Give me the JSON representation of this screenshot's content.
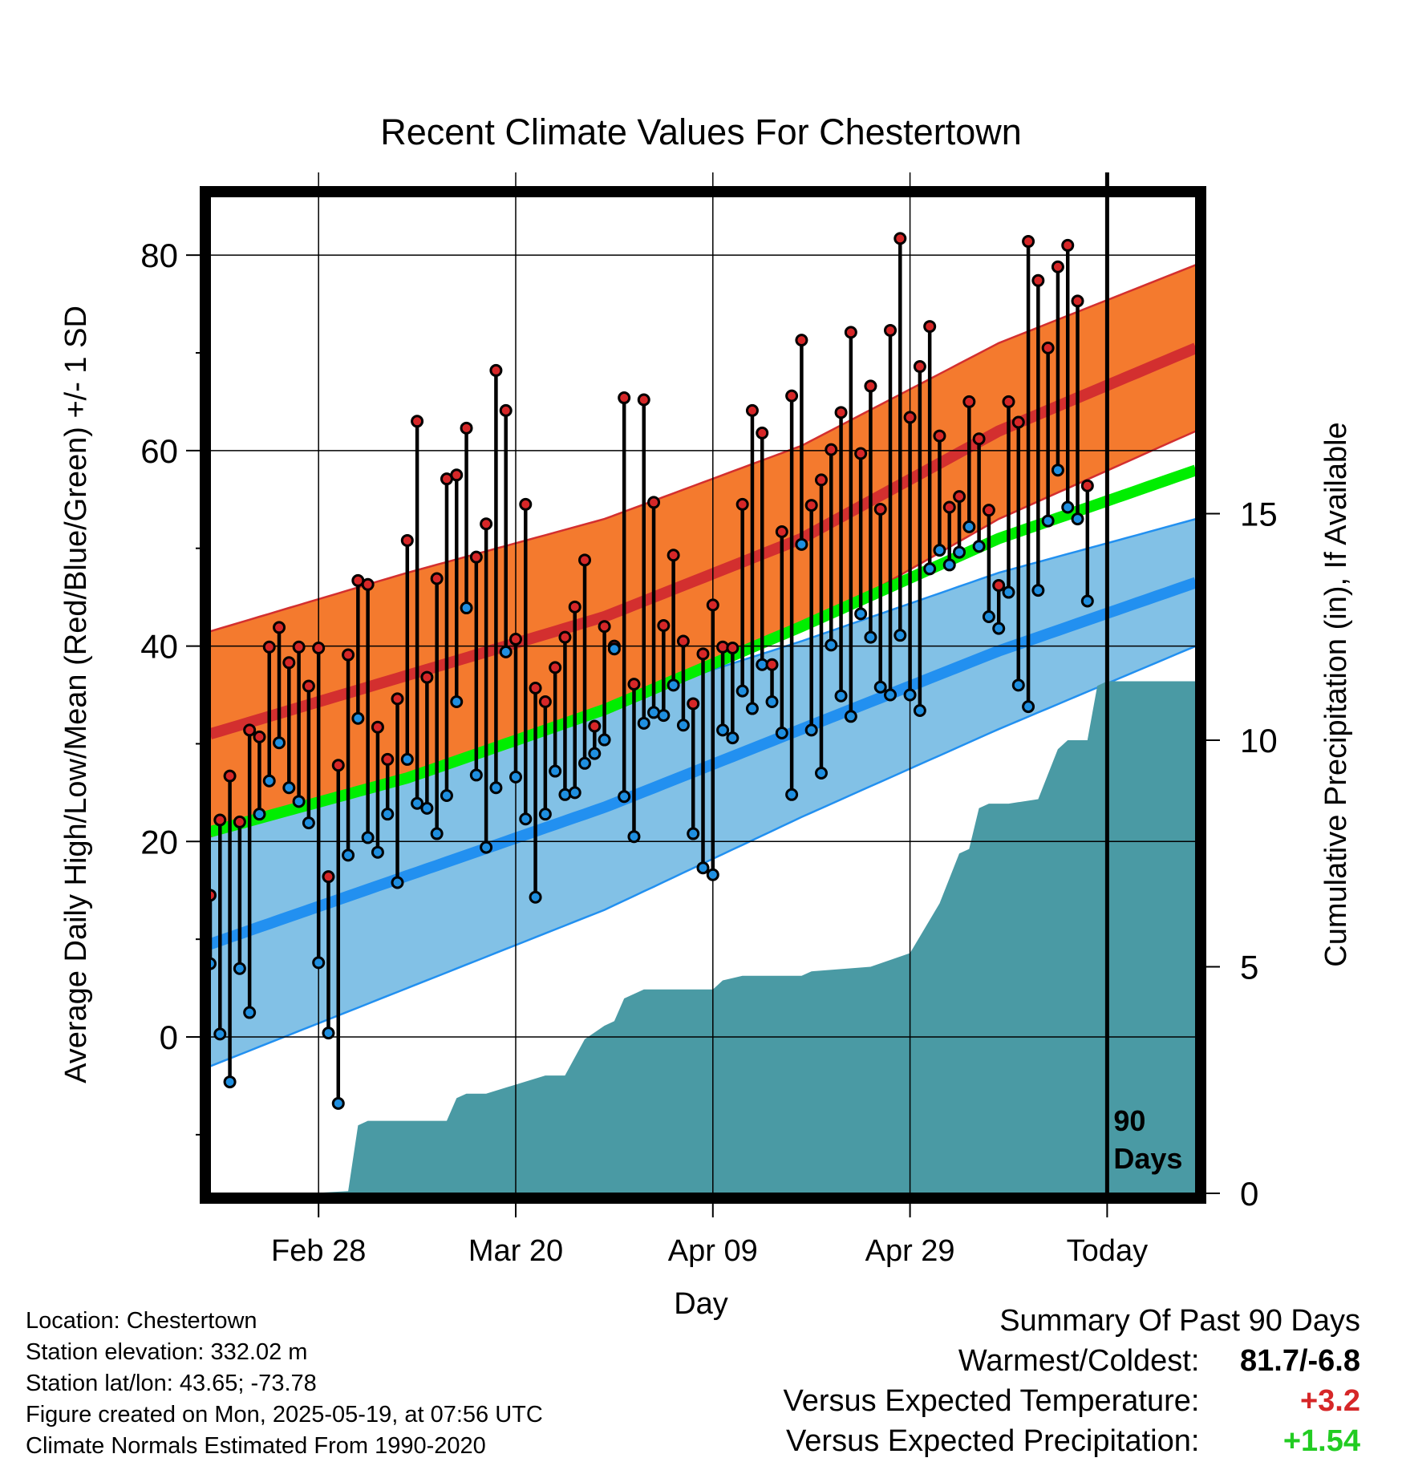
{
  "chart_data": {
    "type": "line",
    "title": "Recent Climate Values For Chestertown",
    "xlabel": "Day",
    "ylabel": "Average Daily High/Low/Mean (Red/Blue/Green) +/- 1 SD",
    "y2label": "Cumulative Precipitation (in), If Available",
    "x_ticks": [
      "Feb 28",
      "Mar 20",
      "Apr 09",
      "Apr 29",
      "Today"
    ],
    "x_tick_day": [
      17,
      37,
      57,
      77,
      97
    ],
    "y_ticks": [
      0,
      20,
      40,
      60,
      80
    ],
    "y2_ticks": [
      0,
      5,
      10,
      15
    ],
    "ylim": [
      -16,
      86
    ],
    "y2lim": [
      0,
      22
    ],
    "xlim": [
      6,
      106
    ],
    "today_day": 97,
    "today_label": [
      "90",
      "Days"
    ],
    "colors": {
      "high_band": "#f47a2e",
      "high_mean": "#d32f2f",
      "low_band": "#82c1e6",
      "low_mean": "#2290f0",
      "avg_mean": "#00ee00",
      "precip": "#4a9aa4",
      "high_point": "#d62728",
      "low_point": "#1f8fe0"
    },
    "normals": {
      "day": [
        6,
        26,
        46,
        66,
        86,
        106
      ],
      "high_mean": [
        31,
        37,
        43,
        51,
        62,
        70.5
      ],
      "high_sd": [
        10.5,
        10.5,
        10,
        9.5,
        9,
        8.5
      ],
      "low_mean": [
        9.5,
        16.5,
        23.5,
        31.5,
        39.5,
        46.5
      ],
      "low_sd": [
        12.5,
        11.5,
        10.5,
        9,
        8,
        6.5
      ],
      "avg_mean": [
        21,
        26.5,
        33.5,
        42,
        51,
        58
      ]
    },
    "daily": {
      "day": [
        6,
        7,
        8,
        9,
        10,
        11,
        12,
        13,
        14,
        15,
        16,
        17,
        18,
        19,
        20,
        21,
        22,
        23,
        24,
        25,
        26,
        27,
        28,
        29,
        30,
        31,
        32,
        33,
        34,
        35,
        36,
        37,
        38,
        39,
        40,
        41,
        42,
        43,
        44,
        45,
        46,
        47,
        48,
        49,
        50,
        51,
        52,
        53,
        54,
        55,
        56,
        57,
        58,
        59,
        60,
        61,
        62,
        63,
        64,
        65,
        66,
        67,
        68,
        69,
        70,
        71,
        72,
        73,
        74,
        75,
        76,
        77,
        78,
        79,
        80,
        81,
        82,
        83,
        84,
        85,
        86,
        87,
        88,
        89,
        90,
        91,
        92,
        93,
        94,
        95
      ],
      "high": [
        14.5,
        22.2,
        26.7,
        22.0,
        31.4,
        30.7,
        39.9,
        41.9,
        38.3,
        39.9,
        35.9,
        39.8,
        16.4,
        27.8,
        39.1,
        46.7,
        46.3,
        31.7,
        28.4,
        34.6,
        50.8,
        63.0,
        36.8,
        46.9,
        57.1,
        57.5,
        62.3,
        49.1,
        52.5,
        68.2,
        64.1,
        40.7,
        54.5,
        35.7,
        34.3,
        37.8,
        40.9,
        44.0,
        48.8,
        31.8,
        42.0,
        40.0,
        65.4,
        36.1,
        65.2,
        54.7,
        42.1,
        49.3,
        40.5,
        34.1,
        39.2,
        44.2,
        39.9,
        39.8,
        54.5,
        64.1,
        61.8,
        38.1,
        51.7,
        65.6,
        71.3,
        54.4,
        57.0,
        60.1,
        63.9,
        72.1,
        59.7,
        66.6,
        54.0,
        72.3,
        81.7,
        63.4,
        68.6,
        72.7,
        61.5,
        54.2,
        55.3,
        65.0,
        61.2,
        53.9,
        46.2,
        65.0,
        62.9,
        81.4,
        77.4,
        70.5,
        78.8,
        81.0,
        75.3,
        56.4
      ],
      "low": [
        7.5,
        0.3,
        -4.6,
        7.0,
        2.5,
        22.8,
        26.2,
        30.1,
        25.5,
        24.1,
        21.9,
        7.6,
        0.4,
        -6.8,
        18.6,
        32.6,
        20.4,
        18.9,
        22.8,
        15.8,
        28.4,
        23.9,
        23.4,
        20.8,
        24.7,
        34.3,
        43.9,
        26.8,
        19.4,
        25.5,
        39.4,
        26.6,
        22.3,
        14.3,
        22.8,
        27.2,
        24.8,
        25.0,
        28.0,
        29.0,
        30.4,
        39.7,
        24.6,
        20.5,
        32.1,
        33.2,
        32.9,
        36.0,
        31.9,
        20.8,
        17.3,
        16.6,
        31.4,
        30.6,
        35.4,
        33.6,
        38.1,
        34.3,
        31.1,
        24.8,
        50.4,
        31.4,
        27.0,
        40.1,
        34.9,
        32.8,
        43.3,
        40.9,
        35.8,
        35.0,
        41.1,
        35.0,
        33.4,
        47.9,
        49.8,
        48.3,
        49.6,
        52.2,
        50.2,
        43.0,
        41.8,
        45.5,
        36.0,
        33.8,
        45.7,
        52.8,
        58.0,
        54.2,
        53.0,
        44.6
      ]
    },
    "precip": {
      "day": [
        6,
        16,
        20,
        21,
        22,
        23,
        24,
        30,
        31,
        32,
        33,
        34,
        40,
        41,
        42,
        44,
        46,
        47,
        48,
        49,
        50,
        51,
        52,
        57,
        58,
        60,
        66,
        67,
        73,
        77,
        80,
        82,
        83,
        84,
        85,
        86,
        87,
        90,
        92,
        93,
        95,
        96,
        97,
        106
      ],
      "value": [
        0,
        0,
        0.05,
        1.5,
        1.6,
        1.6,
        1.6,
        1.6,
        2.1,
        2.2,
        2.2,
        2.2,
        2.6,
        2.6,
        2.6,
        3.4,
        3.7,
        3.8,
        4.3,
        4.4,
        4.5,
        4.5,
        4.5,
        4.5,
        4.7,
        4.8,
        4.8,
        4.9,
        5.0,
        5.3,
        6.4,
        7.5,
        7.6,
        8.5,
        8.6,
        8.6,
        8.6,
        8.7,
        9.8,
        10.0,
        10.0,
        11.2,
        11.3,
        11.3
      ]
    }
  },
  "info": {
    "location": "Location: Chestertown",
    "elevation": "Station elevation: 332.02 m",
    "latlon": "Station lat/lon: 43.65; -73.78",
    "created": "Figure created on Mon, 2025-05-19, at 07:56 UTC",
    "normals": "Climate Normals Estimated From 1990-2020"
  },
  "summary": {
    "title": "Summary Of Past 90 Days",
    "warm_cold_label": "Warmest/Coldest:",
    "warm_cold_value": "81.7/-6.8",
    "temp_label": "Versus Expected Temperature:",
    "temp_value": "+3.2",
    "precip_label": "Versus Expected Precipitation:",
    "precip_value": "+1.54"
  }
}
